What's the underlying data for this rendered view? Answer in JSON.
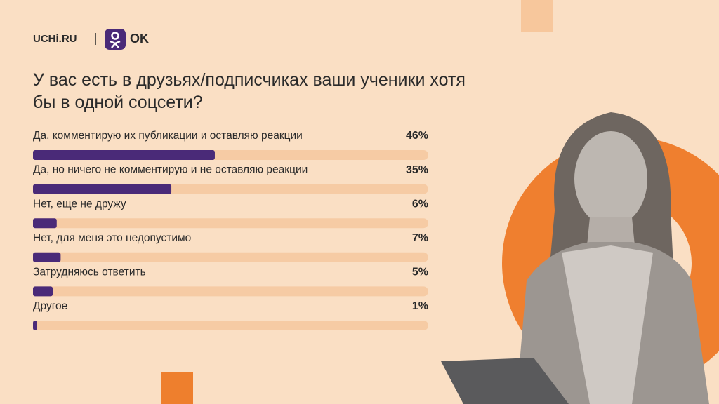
{
  "brand": {
    "left": "UCHi.RU",
    "right": "OK"
  },
  "chart_data": {
    "type": "bar",
    "orientation": "horizontal",
    "title": "У вас есть в друзьях/подписчиках ваши ученики хотя бы в одной соцсети?",
    "categories": [
      "Да, комментирую их публикации и оставляю реакции",
      "Да, но ничего не комментирую и не оставляю реакции",
      "Нет, еще не дружу",
      "Нет, для меня это недопустимо",
      "Затрудняюсь ответить",
      "Другое"
    ],
    "values": [
      46,
      35,
      6,
      7,
      5,
      1
    ],
    "value_labels": [
      "46%",
      "35%",
      "6%",
      "7%",
      "5%",
      "1%"
    ],
    "xlim": [
      0,
      100
    ],
    "color": "#4a2a78",
    "track_color": "#f6cba4"
  }
}
